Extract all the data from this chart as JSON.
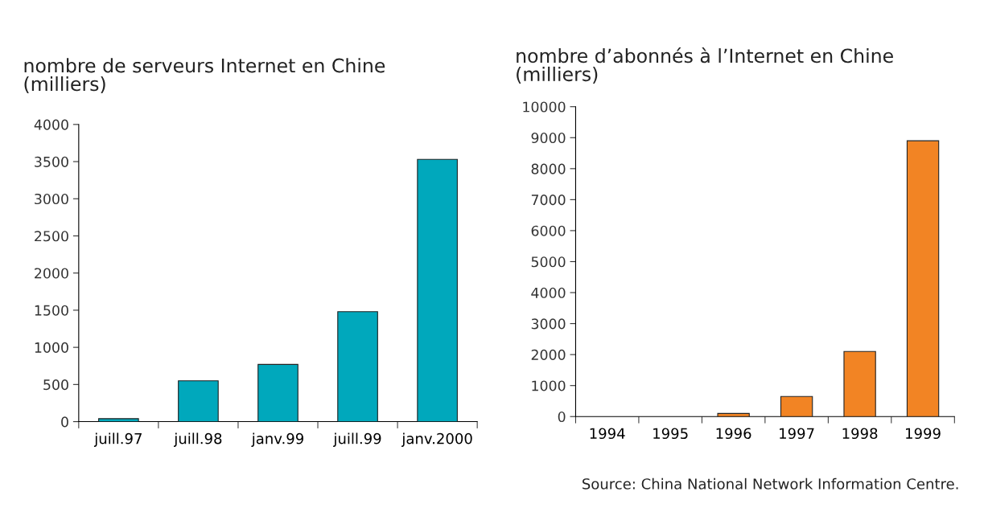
{
  "chart_data": [
    {
      "type": "bar",
      "title": "nombre de serveurs Internet en Chine\n(milliers)",
      "categories": [
        "juill.97",
        "juill.98",
        "janv.99",
        "juill.99",
        "janv.2000"
      ],
      "values": [
        40,
        550,
        770,
        1480,
        3530
      ],
      "color": "#00a8bc",
      "ylim": [
        0,
        4000
      ],
      "yticks": [
        0,
        500,
        1000,
        1500,
        2000,
        2500,
        3000,
        3500,
        4000
      ],
      "grid": false,
      "legend": false
    },
    {
      "type": "bar",
      "title": "nombre d’abonnés à l’Internet en Chine\n(milliers)",
      "categories": [
        "1994",
        "1995",
        "1996",
        "1997",
        "1998",
        "1999"
      ],
      "values": [
        null,
        null,
        100,
        650,
        2100,
        8900
      ],
      "color": "#f28424",
      "ylim": [
        0,
        10000
      ],
      "yticks": [
        0,
        1000,
        2000,
        3000,
        4000,
        5000,
        6000,
        7000,
        8000,
        9000,
        10000
      ],
      "grid": false,
      "legend": false,
      "annotations": [
        "Source: China National Network Information Centre."
      ]
    }
  ]
}
